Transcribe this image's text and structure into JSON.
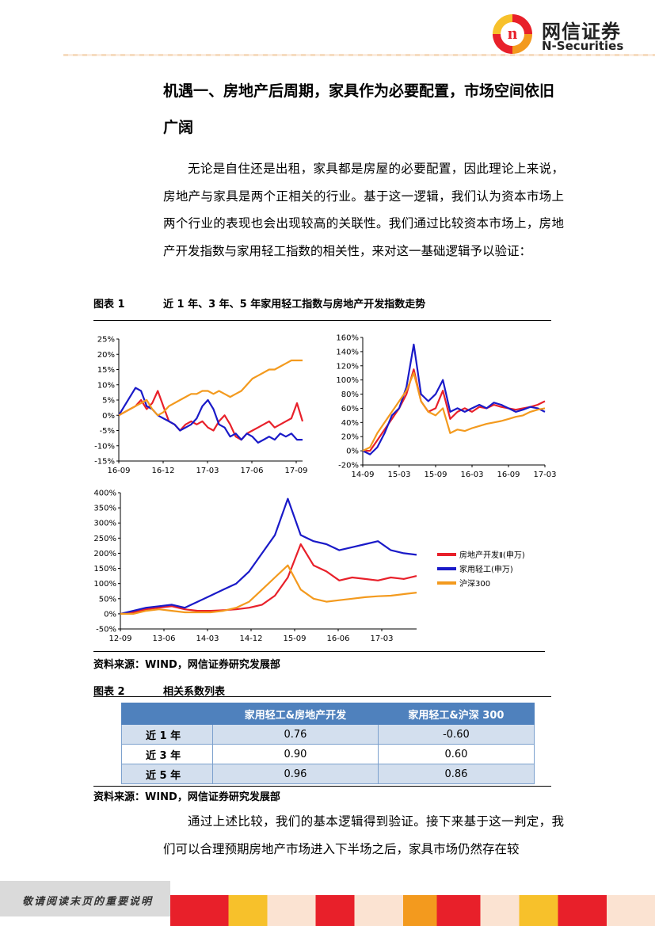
{
  "header": {
    "logo_text_cn": "网信证券",
    "logo_text_en": "N-Securities",
    "logo_glyph": "n"
  },
  "heading_line1": "机遇一、房地产后周期，家具作为必要配置，市场空间依旧",
  "heading_line2": "广阔",
  "paragraph1": "无论是自住还是出租，家具都是房屋的必要配置，因此理论上来说，房地产与家具是两个正相关的行业。基于这一逻辑，我们认为资本市场上两个行业的表现也会出现较高的关联性。我们通过比较资本市场上，房地产开发指数与家用轻工指数的相关性，来对这一基础逻辑予以验证：",
  "figure1": {
    "label": "图表 1",
    "title": "近 1 年、3 年、5 年家用轻工指数与房地产开发指数走势",
    "source": "资料来源：WIND，网信证券研究发展部"
  },
  "figure2": {
    "label": "图表 2",
    "title": "相关系数列表",
    "source": "资料来源：WIND，网信证券研究发展部"
  },
  "table": {
    "headers": [
      "",
      "家用轻工&房地产开发",
      "家用轻工&沪深 300"
    ],
    "rows": [
      [
        "近 1 年",
        "0.76",
        "-0.60"
      ],
      [
        "近 3 年",
        "0.90",
        "0.60"
      ],
      [
        "近 5 年",
        "0.96",
        "0.86"
      ]
    ]
  },
  "paragraph2": "通过上述比较，我们的基本逻辑得到验证。接下来基于这一判定，我们可以合理预期房地产市场进入下半场之后，家具市场仍然存在较",
  "footer": {
    "text": "敬请阅读末页的重要说明"
  },
  "colors": {
    "real_estate": "#e8202a",
    "light_industry": "#1a1ac8",
    "hs300": "#f39a1e"
  },
  "chart_data": [
    {
      "type": "line",
      "title": "",
      "xlabel": "",
      "ylabel": "",
      "x_ticks": [
        "16-09",
        "16-12",
        "17-03",
        "17-06",
        "17-09"
      ],
      "y_ticks": [
        "-15%",
        "-10%",
        "-5%",
        "0%",
        "5%",
        "10%",
        "15%",
        "20%",
        "25%"
      ],
      "ylim": [
        -15,
        25
      ],
      "series": [
        {
          "name": "房地产开发Ⅱ(申万)",
          "color": "#e8202a",
          "values": [
            0,
            1,
            2,
            3,
            5,
            2,
            4,
            8,
            3,
            -2,
            -3,
            -5,
            -3,
            -2,
            -3,
            -2,
            -4,
            -5,
            -2,
            0,
            -3,
            -7,
            -8,
            -6,
            -5,
            -4,
            -3,
            -2,
            -4,
            -3,
            -2,
            -1,
            4,
            -2
          ]
        },
        {
          "name": "家用轻工(申万)",
          "color": "#1a1ac8",
          "values": [
            0,
            3,
            6,
            9,
            8,
            3,
            2,
            0,
            -1,
            -2,
            -3,
            -5,
            -4,
            -3,
            -1,
            3,
            5,
            2,
            -3,
            -4,
            -7,
            -6,
            -8,
            -6,
            -7,
            -9,
            -8,
            -7,
            -8,
            -6,
            -7,
            -6,
            -8,
            -8
          ]
        },
        {
          "name": "沪深300",
          "color": "#f39a1e",
          "values": [
            0,
            1,
            2,
            3,
            4,
            5,
            2,
            0,
            1,
            3,
            4,
            5,
            6,
            7,
            7,
            8,
            8,
            7,
            8,
            7,
            6,
            7,
            8,
            10,
            12,
            13,
            14,
            15,
            15,
            16,
            17,
            18,
            18,
            18
          ]
        }
      ]
    },
    {
      "type": "line",
      "title": "",
      "xlabel": "",
      "ylabel": "",
      "x_ticks": [
        "14-09",
        "15-03",
        "15-09",
        "16-03",
        "16-09",
        "17-03"
      ],
      "y_ticks": [
        "-20%",
        "0%",
        "20%",
        "40%",
        "60%",
        "80%",
        "100%",
        "120%",
        "140%",
        "160%"
      ],
      "ylim": [
        -20,
        160
      ],
      "series": [
        {
          "name": "房地产开发Ⅱ(申万)",
          "color": "#e8202a",
          "values": [
            0,
            0,
            15,
            30,
            45,
            60,
            80,
            115,
            70,
            55,
            60,
            85,
            45,
            55,
            60,
            55,
            62,
            60,
            65,
            62,
            60,
            58,
            60,
            62,
            65,
            70
          ]
        },
        {
          "name": "家用轻工(申万)",
          "color": "#1a1ac8",
          "values": [
            0,
            -5,
            5,
            25,
            50,
            60,
            90,
            150,
            80,
            70,
            80,
            100,
            55,
            60,
            55,
            60,
            65,
            60,
            68,
            65,
            60,
            55,
            58,
            62,
            60,
            55
          ]
        },
        {
          "name": "沪深300",
          "color": "#f39a1e",
          "values": [
            0,
            5,
            25,
            40,
            55,
            70,
            85,
            110,
            70,
            55,
            50,
            60,
            25,
            30,
            28,
            32,
            35,
            38,
            40,
            42,
            45,
            48,
            50,
            55,
            58,
            60
          ]
        }
      ]
    },
    {
      "type": "line",
      "title": "",
      "xlabel": "",
      "ylabel": "",
      "x_ticks": [
        "12-09",
        "13-06",
        "14-03",
        "14-12",
        "15-09",
        "16-06",
        "17-03"
      ],
      "y_ticks": [
        "-50%",
        "0%",
        "50%",
        "100%",
        "150%",
        "200%",
        "250%",
        "300%",
        "350%",
        "400%"
      ],
      "ylim": [
        -50,
        400
      ],
      "series": [
        {
          "name": "房地产开发Ⅱ(申万)",
          "color": "#e8202a",
          "values": [
            0,
            5,
            15,
            20,
            25,
            15,
            10,
            10,
            12,
            15,
            20,
            30,
            60,
            120,
            230,
            160,
            140,
            110,
            120,
            115,
            110,
            120,
            115,
            125
          ]
        },
        {
          "name": "家用轻工(申万)",
          "color": "#1a1ac8",
          "values": [
            0,
            10,
            20,
            25,
            30,
            20,
            40,
            60,
            80,
            100,
            140,
            200,
            260,
            380,
            260,
            240,
            230,
            210,
            220,
            230,
            240,
            210,
            200,
            195
          ]
        },
        {
          "name": "沪深300",
          "color": "#f39a1e",
          "values": [
            0,
            0,
            10,
            15,
            10,
            5,
            5,
            5,
            10,
            20,
            40,
            80,
            120,
            160,
            80,
            50,
            40,
            45,
            50,
            55,
            58,
            60,
            65,
            70
          ]
        }
      ],
      "legend_position": "right"
    }
  ]
}
